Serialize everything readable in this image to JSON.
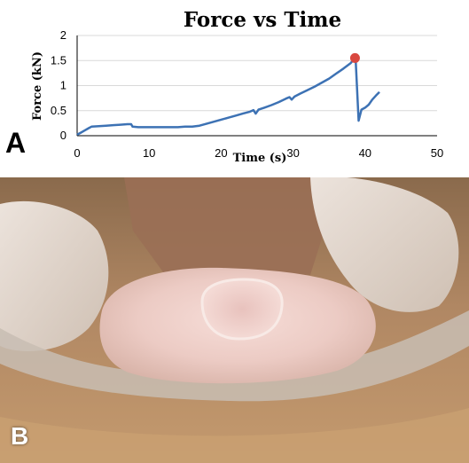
{
  "panel_a_label": "A",
  "panel_b_label": "B",
  "colors": {
    "line": "#3d72b4",
    "peak_marker": "#d9473f",
    "grid": "#d9d9d9",
    "axis": "#000000"
  },
  "photo": {
    "description_icon": "photo-icon"
  },
  "chart_data": {
    "type": "line",
    "title": "Force vs Time",
    "xlabel": "Time (s)",
    "ylabel": "Force (kN)",
    "xlim": [
      0,
      50
    ],
    "ylim": [
      0,
      2
    ],
    "x_ticks": [
      "0",
      "10",
      "20",
      "30",
      "40",
      "50"
    ],
    "y_ticks": [
      "0",
      "0.5",
      "1",
      "1.5",
      "2"
    ],
    "grid": "horizontal",
    "series": [
      {
        "points": [
          [
            0,
            0.02
          ],
          [
            0.5,
            0.06
          ],
          [
            1,
            0.1
          ],
          [
            1.6,
            0.15
          ],
          [
            2,
            0.18
          ],
          [
            3,
            0.19
          ],
          [
            4,
            0.2
          ],
          [
            5,
            0.21
          ],
          [
            6,
            0.22
          ],
          [
            7,
            0.23
          ],
          [
            7.5,
            0.23
          ],
          [
            7.7,
            0.18
          ],
          [
            8.5,
            0.17
          ],
          [
            10,
            0.17
          ],
          [
            12,
            0.17
          ],
          [
            14,
            0.17
          ],
          [
            15,
            0.18
          ],
          [
            16,
            0.18
          ],
          [
            17,
            0.2
          ],
          [
            18,
            0.24
          ],
          [
            19,
            0.28
          ],
          [
            20,
            0.32
          ],
          [
            21,
            0.36
          ],
          [
            22,
            0.4
          ],
          [
            23,
            0.44
          ],
          [
            24,
            0.48
          ],
          [
            24.5,
            0.51
          ],
          [
            24.8,
            0.44
          ],
          [
            25.2,
            0.52
          ],
          [
            26,
            0.56
          ],
          [
            27,
            0.61
          ],
          [
            28,
            0.67
          ],
          [
            29,
            0.74
          ],
          [
            29.5,
            0.77
          ],
          [
            29.8,
            0.72
          ],
          [
            30.2,
            0.78
          ],
          [
            31,
            0.84
          ],
          [
            32,
            0.91
          ],
          [
            33,
            0.98
          ],
          [
            34,
            1.06
          ],
          [
            35,
            1.14
          ],
          [
            36,
            1.24
          ],
          [
            37,
            1.34
          ],
          [
            38,
            1.45
          ],
          [
            38.6,
            1.55
          ],
          [
            38.7,
            1.5
          ],
          [
            39.1,
            0.3
          ],
          [
            39.5,
            0.52
          ],
          [
            40,
            0.56
          ],
          [
            40.5,
            0.62
          ],
          [
            41,
            0.72
          ],
          [
            41.5,
            0.8
          ],
          [
            42,
            0.87
          ]
        ]
      }
    ],
    "peak_marker": {
      "x": 38.6,
      "y": 1.55
    }
  }
}
